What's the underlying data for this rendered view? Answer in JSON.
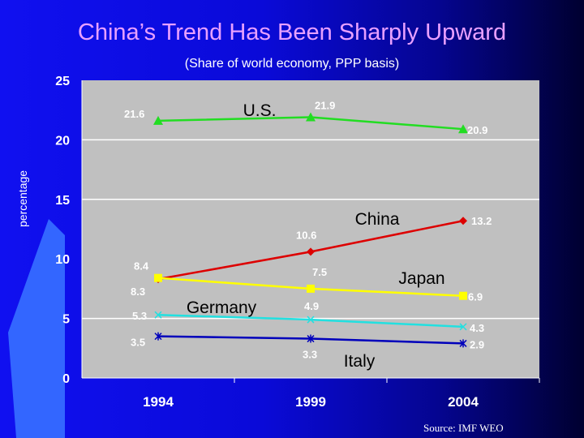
{
  "title": "China’s Trend Has Been Sharply Upward",
  "source": "Source: IMF WEO",
  "colors": {
    "plot_bg": "#c0c0c0",
    "U.S.": "#22dd22",
    "China": "#dd0000",
    "Japan": "#ffff00",
    "Germany": "#22e0e0",
    "Italy": "#0000bb"
  },
  "chart_data": {
    "type": "line",
    "subtitle": "(Share of world economy, PPP basis)",
    "ylabel": "percentage",
    "categories": [
      "1994",
      "1999",
      "2004"
    ],
    "ylim": [
      0,
      25
    ],
    "yticks": [
      0,
      5,
      10,
      15,
      20,
      25
    ],
    "grid": true,
    "series": [
      {
        "name": "U.S.",
        "values": [
          21.6,
          21.9,
          20.9
        ],
        "labels": [
          "21.6",
          "21.9",
          "20.9"
        ],
        "marker": "triangle"
      },
      {
        "name": "China",
        "values": [
          8.3,
          10.6,
          13.2
        ],
        "labels": [
          "8.3",
          "10.6",
          "13.2"
        ],
        "marker": "diamond"
      },
      {
        "name": "Japan",
        "values": [
          8.4,
          7.5,
          6.9
        ],
        "labels": [
          "8.4",
          "7.5",
          "6.9"
        ],
        "marker": "square"
      },
      {
        "name": "Germany",
        "values": [
          5.3,
          4.9,
          4.3
        ],
        "labels": [
          "5.3",
          "4.9",
          "4.3"
        ],
        "marker": "x"
      },
      {
        "name": "Italy",
        "values": [
          3.5,
          3.3,
          2.9
        ],
        "labels": [
          "3.5",
          "3.3",
          "2.9"
        ],
        "marker": "star"
      }
    ]
  }
}
